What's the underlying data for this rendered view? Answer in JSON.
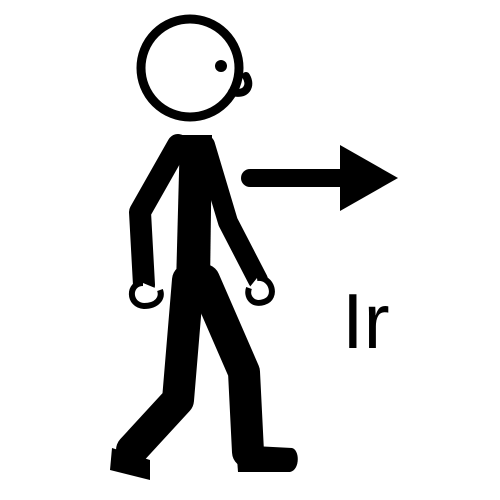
{
  "pictogram": {
    "label": "Ir",
    "stroke_color": "#000000",
    "background_color": "#ffffff",
    "figure_icon": "walking-person-icon",
    "direction_icon": "arrow-right-icon"
  }
}
